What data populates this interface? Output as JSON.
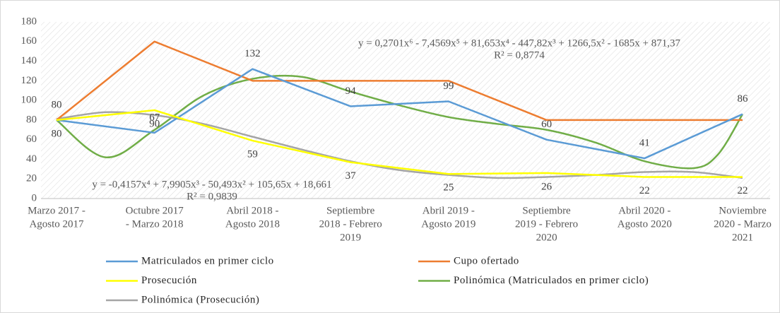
{
  "chart_data": {
    "type": "line",
    "categories": [
      [
        "Marzo 2017 -",
        "Agosto 2017"
      ],
      [
        "Octubre 2017",
        "- Marzo 2018"
      ],
      [
        "Abril 2018 -",
        "Agosto 2018"
      ],
      [
        "Septiembre",
        "2018 - Febrero",
        "2019"
      ],
      [
        "Abril 2019 -",
        "Agosto 2019"
      ],
      [
        "Septiembre",
        "2019 - Febrero",
        "2020"
      ],
      [
        "Abril 2020 -",
        "Agosto 2020"
      ],
      [
        "Noviembre",
        "2020 - Marzo",
        "2021"
      ]
    ],
    "series": [
      {
        "name": "Matriculados en primer ciclo",
        "color": "#5b9bd5",
        "values": [
          80,
          67,
          132,
          94,
          99,
          60,
          41,
          86
        ],
        "labels": "above"
      },
      {
        "name": "Cupo ofertado",
        "color": "#ed7d31",
        "values": [
          80,
          160,
          120,
          120,
          120,
          80,
          80,
          80
        ]
      },
      {
        "name": "Prosecución",
        "color": "#ffff00",
        "values": [
          80,
          90,
          59,
          37,
          25,
          26,
          22,
          22
        ],
        "labels": "below"
      },
      {
        "name": "Polinómica (Matriculados en primer ciclo)",
        "color": "#70ad47",
        "x": [
          1,
          1.5,
          2,
          2.5,
          3,
          3.5,
          4,
          4.5,
          5,
          5.5,
          6,
          6.5,
          7,
          7.5,
          7.75,
          8
        ],
        "values": [
          80,
          42,
          70,
          105,
          122,
          124,
          109,
          95,
          83,
          76,
          70,
          57,
          38,
          31,
          45,
          86
        ]
      },
      {
        "name": "Polinómica (Prosecución)",
        "color": "#a5a5a5",
        "x": [
          1,
          1.5,
          2,
          2.5,
          3,
          3.5,
          4,
          4.5,
          5,
          5.5,
          6,
          6.5,
          7,
          7.5,
          8
        ],
        "values": [
          81,
          88,
          85,
          76,
          63,
          50,
          38,
          29,
          24,
          21,
          22,
          24,
          27,
          27,
          21
        ]
      }
    ],
    "annotations": [
      "y = 0,2701x⁶ - 7,4569x⁵ + 81,653x⁴ - 447,82x³ + 1266,5x² - 1685x + 871,37",
      "R² = 0,8774",
      "y = -0,4157x⁴ + 7,9905x³ - 50,493x² + 105,65x + 18,661",
      "R² = 0,9839"
    ],
    "ylim": [
      0,
      180
    ],
    "yticks": [
      0,
      20,
      40,
      60,
      80,
      100,
      120,
      140,
      160,
      180
    ],
    "grid": true
  }
}
